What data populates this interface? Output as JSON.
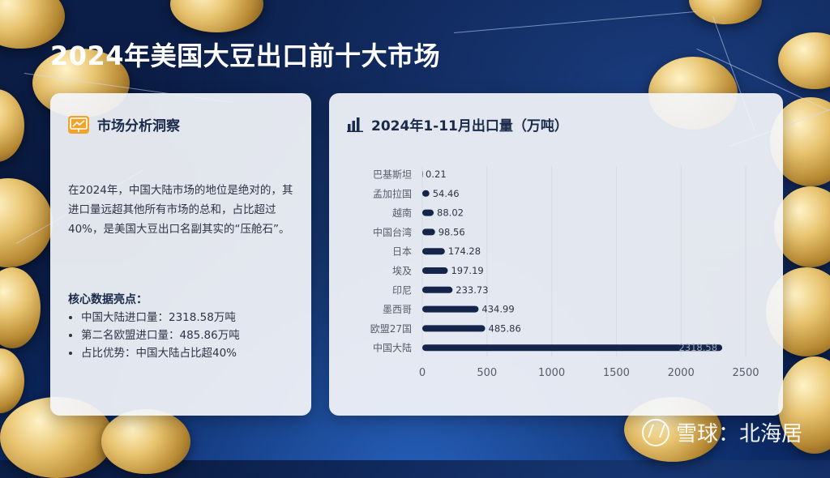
{
  "page": {
    "title": "2024年美国大豆出口前十大市场"
  },
  "left_panel": {
    "header": "市场分析洞察",
    "icon": "chart-board-icon",
    "insight": "在2024年，中国大陆市场的地位是绝对的，其进口量远超其他所有市场的总和，占比超过40%，是美国大豆出口名副其实的“压舱石”。",
    "highlights_title": "核心数据亮点：",
    "highlights": [
      "中国大陆进口量：2318.58万吨",
      "第二名欧盟进口量：485.86万吨",
      "占比优势：中国大陆占比超40%"
    ]
  },
  "right_panel": {
    "header": "2024年1-11月出口量（万吨）",
    "icon": "bar-chart-icon"
  },
  "chart_data": {
    "type": "bar",
    "orientation": "horizontal",
    "title": "2024年1-11月出口量（万吨）",
    "categories": [
      "巴基斯坦",
      "孟加拉国",
      "越南",
      "中国台湾",
      "日本",
      "埃及",
      "印尼",
      "墨西哥",
      "欧盟27国",
      "中国大陆"
    ],
    "values": [
      0.21,
      54.46,
      88.02,
      98.56,
      174.28,
      197.19,
      233.73,
      434.99,
      485.86,
      2318.58
    ],
    "value_labels": [
      "0.21",
      "54.46",
      "88.02",
      "98.56",
      "174.28",
      "197.19",
      "233.73",
      "434.99",
      "485.86",
      "2318.58"
    ],
    "xticks": [
      "0",
      "500",
      "1000",
      "1500",
      "2000",
      "2500"
    ],
    "xlim": [
      0,
      2500
    ],
    "bar_color": "#15244a",
    "grid": true
  },
  "watermark": "雪球：北海居"
}
